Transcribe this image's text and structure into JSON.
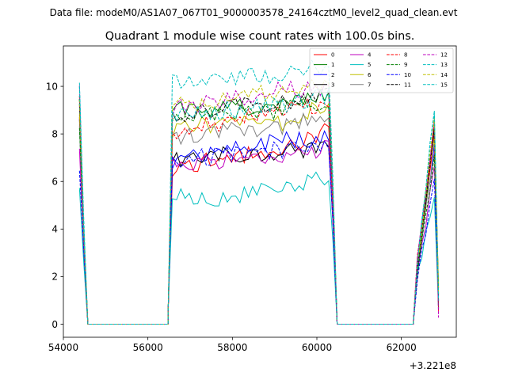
{
  "suptitle": "Data file: modeM0/AS1A07_067T01_9000003578_24164cztM0_level2_quad_clean.evt",
  "chart_data": {
    "type": "line",
    "title": "Quadrant 1 module wise count rates with 100.0s bins.",
    "xlabel": "",
    "ylabel": "",
    "x_offset_label": "+3.221e8",
    "xlim": [
      54000,
      63300
    ],
    "ylim": [
      -0.55,
      11.7
    ],
    "x_ticks": [
      54000,
      56000,
      58000,
      60000,
      62000
    ],
    "x_tick_labels": [
      "54000",
      "56000",
      "58000",
      "60000",
      "62000"
    ],
    "y_ticks": [
      0,
      2,
      4,
      6,
      8,
      10
    ],
    "y_tick_labels": [
      "0",
      "2",
      "4",
      "6",
      "8",
      "10"
    ],
    "grid": false,
    "legend_position": "top-right",
    "segments": [
      {
        "start": 54380,
        "end": 54580,
        "step": 100
      },
      {
        "start": 56480,
        "end": 60380,
        "step": 100
      },
      {
        "start": 62280,
        "end": 62880,
        "step": 100
      }
    ],
    "series": [
      {
        "name": "0",
        "color": "#ff0000",
        "dash": "solid",
        "level": 6.9,
        "edge": 9.0,
        "trend": [
          -0.4,
          0.1,
          0.3,
          1.4
        ]
      },
      {
        "name": "1",
        "color": "#008000",
        "dash": "solid",
        "level": 8.8,
        "edge": 9.2,
        "trend": [
          0.2,
          0.3,
          0.4,
          0.9
        ]
      },
      {
        "name": "2",
        "color": "#0000ff",
        "dash": "solid",
        "level": 7.4,
        "edge": 8.6,
        "trend": [
          -0.6,
          0.0,
          0.3,
          0.4
        ]
      },
      {
        "name": "3",
        "color": "#000000",
        "dash": "solid",
        "level": 6.9,
        "edge": 9.3,
        "trend": [
          -0.1,
          0.2,
          0.3,
          0.5
        ]
      },
      {
        "name": "4",
        "color": "#bf00bf",
        "dash": "solid",
        "level": 6.8,
        "edge": 7.4,
        "trend": [
          0.0,
          0.1,
          0.3,
          0.6
        ]
      },
      {
        "name": "5",
        "color": "#00bfbf",
        "dash": "solid",
        "level": 5.6,
        "edge": 5.9,
        "trend": [
          -0.2,
          -0.3,
          0.2,
          0.6
        ]
      },
      {
        "name": "6",
        "color": "#bfbf00",
        "dash": "solid",
        "level": 8.1,
        "edge": 8.9,
        "trend": [
          0.0,
          0.4,
          0.3,
          1.3
        ]
      },
      {
        "name": "7",
        "color": "#808080",
        "dash": "solid",
        "level": 7.8,
        "edge": 8.2,
        "trend": [
          0.0,
          0.3,
          0.4,
          1.2
        ]
      },
      {
        "name": "8",
        "color": "#ff0000",
        "dash": "dashed",
        "level": 7.9,
        "edge": 9.6,
        "trend": [
          0.1,
          0.6,
          1.0,
          1.4
        ]
      },
      {
        "name": "9",
        "color": "#008000",
        "dash": "dashed",
        "level": 8.7,
        "edge": 8.0,
        "trend": [
          -0.1,
          0.1,
          0.3,
          0.8
        ]
      },
      {
        "name": "10",
        "color": "#0000ff",
        "dash": "dashed",
        "level": 7.0,
        "edge": 6.6,
        "trend": [
          -0.1,
          0.1,
          0.3,
          0.6
        ]
      },
      {
        "name": "11",
        "color": "#000000",
        "dash": "dashed",
        "level": 8.8,
        "edge": 9.2,
        "trend": [
          0.0,
          0.3,
          0.5,
          1.0
        ]
      },
      {
        "name": "12",
        "color": "#bf00bf",
        "dash": "dashed",
        "level": 8.8,
        "edge": 9.8,
        "trend": [
          0.3,
          0.6,
          1.0,
          1.2
        ]
      },
      {
        "name": "13",
        "color": "#00bfbf",
        "dash": "dashed",
        "level": 9.9,
        "edge": 10.4,
        "trend": [
          0.2,
          0.4,
          0.6,
          1.0
        ]
      },
      {
        "name": "14",
        "color": "#bfbf00",
        "dash": "dashed",
        "level": 9.0,
        "edge": 9.6,
        "trend": [
          0.2,
          0.4,
          0.8,
          1.2
        ]
      },
      {
        "name": "15",
        "color": "#00bfbf",
        "dash": "dashed",
        "level": 8.8,
        "edge": 10.3,
        "trend": [
          0.1,
          0.2,
          0.4,
          0.9
        ]
      }
    ]
  }
}
